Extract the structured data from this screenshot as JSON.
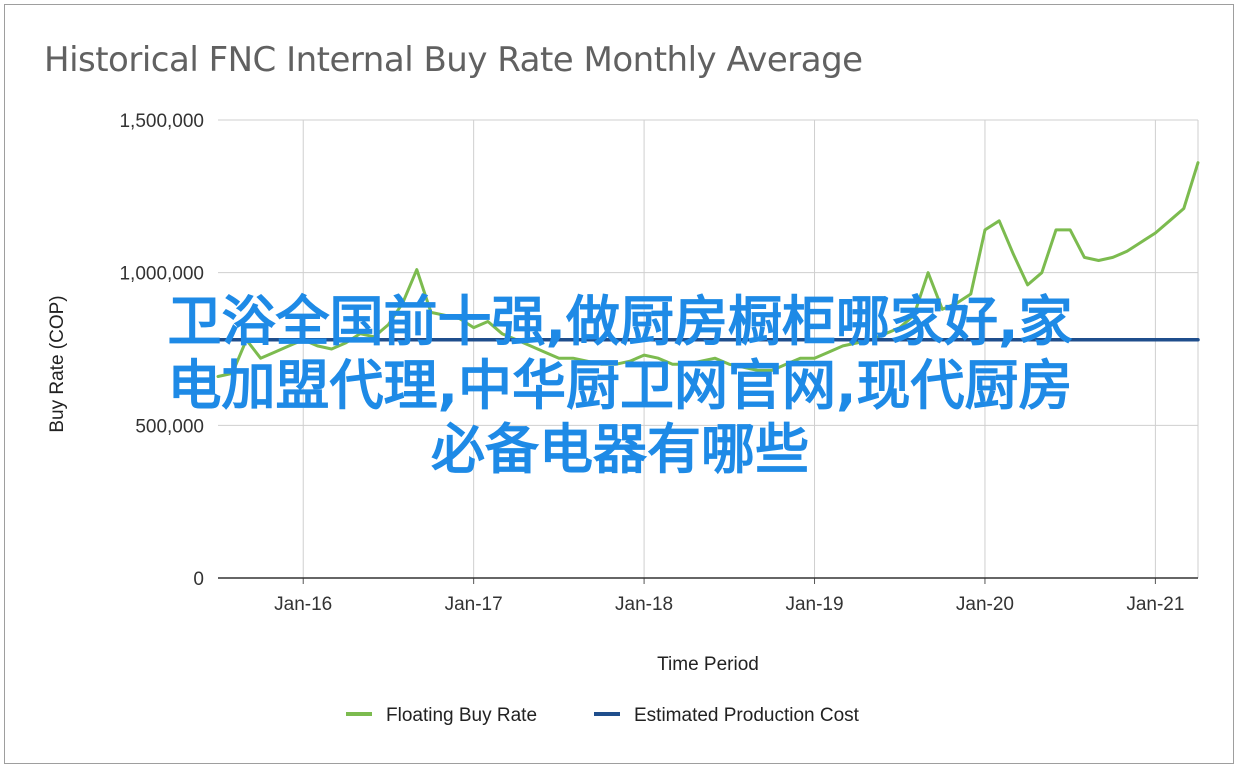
{
  "chart_data": {
    "type": "line",
    "title": "Historical FNC Internal Buy Rate Monthly Average",
    "xlabel": "Time Period",
    "ylabel": "Buy Rate (COP)",
    "ylim": [
      0,
      1500000
    ],
    "yticks": [
      0,
      500000,
      1000000,
      1500000
    ],
    "ytick_labels": [
      "0",
      "500,000",
      "1,000,000",
      "1,500,000"
    ],
    "xlim": [
      "2015-07",
      "2021-04"
    ],
    "xticks": [
      "2016-01",
      "2017-01",
      "2018-01",
      "2019-01",
      "2020-01",
      "2021-01"
    ],
    "xtick_labels": [
      "Jan-16",
      "Jan-17",
      "Jan-18",
      "Jan-19",
      "Jan-20",
      "Jan-21"
    ],
    "grid": "vertical and horizontal",
    "legend": "bottom",
    "series": [
      {
        "name": "Floating Buy Rate",
        "color": "#7cbb4f",
        "x": [
          "2015-07",
          "2015-08",
          "2015-09",
          "2015-10",
          "2015-11",
          "2015-12",
          "2016-01",
          "2016-02",
          "2016-03",
          "2016-04",
          "2016-05",
          "2016-06",
          "2016-07",
          "2016-08",
          "2016-09",
          "2016-10",
          "2016-11",
          "2016-12",
          "2017-01",
          "2017-02",
          "2017-03",
          "2017-04",
          "2017-05",
          "2017-06",
          "2017-07",
          "2017-08",
          "2017-09",
          "2017-10",
          "2017-11",
          "2017-12",
          "2018-01",
          "2018-02",
          "2018-03",
          "2018-04",
          "2018-05",
          "2018-06",
          "2018-07",
          "2018-08",
          "2018-09",
          "2018-10",
          "2018-11",
          "2018-12",
          "2019-01",
          "2019-02",
          "2019-03",
          "2019-04",
          "2019-05",
          "2019-06",
          "2019-07",
          "2019-08",
          "2019-09",
          "2019-10",
          "2019-11",
          "2019-12",
          "2020-01",
          "2020-02",
          "2020-03",
          "2020-04",
          "2020-05",
          "2020-06",
          "2020-07",
          "2020-08",
          "2020-09",
          "2020-10",
          "2020-11",
          "2020-12",
          "2021-01",
          "2021-02",
          "2021-03",
          "2021-04"
        ],
        "values": [
          660000,
          670000,
          780000,
          720000,
          740000,
          760000,
          780000,
          760000,
          750000,
          770000,
          800000,
          790000,
          830000,
          900000,
          1010000,
          870000,
          860000,
          850000,
          820000,
          840000,
          800000,
          780000,
          760000,
          740000,
          720000,
          720000,
          710000,
          700000,
          700000,
          710000,
          730000,
          720000,
          700000,
          700000,
          710000,
          720000,
          700000,
          690000,
          680000,
          680000,
          700000,
          720000,
          720000,
          740000,
          760000,
          770000,
          780000,
          800000,
          820000,
          860000,
          1000000,
          880000,
          900000,
          930000,
          1140000,
          1170000,
          1060000,
          960000,
          1000000,
          1140000,
          1140000,
          1050000,
          1040000,
          1050000,
          1070000,
          1100000,
          1130000,
          1170000,
          1210000,
          1360000
        ]
      },
      {
        "name": "Estimated Production Cost",
        "color": "#1f4e8c",
        "x": [
          "2015-07",
          "2021-04"
        ],
        "values": [
          780000,
          780000
        ]
      }
    ]
  },
  "overlay": {
    "lines": [
      "卫浴全国前十强,做厨房橱柜哪家好,家",
      "电加盟代理,中华厨卫网官网,现代厨房",
      "必备电器有哪些"
    ]
  }
}
